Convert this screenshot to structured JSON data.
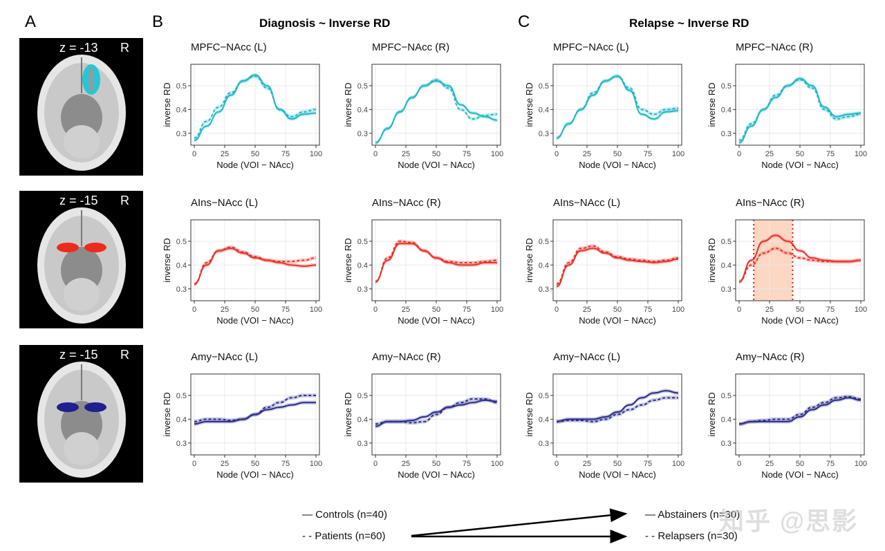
{
  "panel_letters": {
    "a": "A",
    "b": "B",
    "c": "C"
  },
  "section_titles": {
    "diagnosis": "Diagnosis ~ Inverse RD",
    "relapse": "Relapse ~ Inverse RD"
  },
  "brain_slices": [
    {
      "z_label": "z = -13",
      "side": "R",
      "region_color": "#22c8d8"
    },
    {
      "z_label": "z = -15",
      "side": "R",
      "region_color": "#ee2a1f"
    },
    {
      "z_label": "z = -15",
      "side": "R",
      "region_color": "#1f1f8f"
    }
  ],
  "legend": {
    "controls": "— Controls (n=40)",
    "patients": "- - Patients (n=60)",
    "abstainers": "— Abstainers (n=30)",
    "relapsers": "- - Relapsers (n=30)"
  },
  "watermark": "知乎 @思影",
  "colors": {
    "mpfc": "#1fb8c8",
    "ains": "#e8332a",
    "amy": "#2b2b8c",
    "highlight": "#f9c9b0"
  },
  "chart_data": [
    {
      "type": "line",
      "group": "Diagnosis",
      "title": "MPFC−NAcc (L)",
      "xlabel": "Node (VOI − NAcc)",
      "ylabel": "inverse RD",
      "xlim": [
        0,
        100
      ],
      "ylim": [
        0.25,
        0.59
      ],
      "xticks": [
        0,
        25,
        50,
        75,
        100
      ],
      "yticks": [
        0.3,
        0.4,
        0.5
      ],
      "grid": true,
      "color_key": "mpfc",
      "x": [
        0,
        10,
        20,
        30,
        40,
        50,
        60,
        70,
        80,
        90,
        100
      ],
      "series": [
        {
          "name": "Controls",
          "dash": false,
          "values": [
            0.27,
            0.33,
            0.39,
            0.46,
            0.52,
            0.545,
            0.5,
            0.4,
            0.36,
            0.38,
            0.385
          ]
        },
        {
          "name": "Patients",
          "dash": true,
          "values": [
            0.28,
            0.35,
            0.41,
            0.47,
            0.52,
            0.54,
            0.49,
            0.4,
            0.37,
            0.39,
            0.4
          ]
        }
      ]
    },
    {
      "type": "line",
      "group": "Diagnosis",
      "title": "MPFC−NAcc (R)",
      "xlabel": "Node (VOI − NAcc)",
      "ylabel": "inverse RD",
      "xlim": [
        0,
        100
      ],
      "ylim": [
        0.25,
        0.59
      ],
      "xticks": [
        0,
        25,
        50,
        75,
        100
      ],
      "yticks": [
        0.3,
        0.4,
        0.5
      ],
      "grid": true,
      "color_key": "mpfc",
      "x": [
        0,
        10,
        20,
        30,
        40,
        50,
        60,
        70,
        80,
        90,
        100
      ],
      "series": [
        {
          "name": "Controls",
          "dash": false,
          "values": [
            0.26,
            0.32,
            0.39,
            0.45,
            0.5,
            0.52,
            0.5,
            0.42,
            0.385,
            0.37,
            0.355
          ]
        },
        {
          "name": "Patients",
          "dash": true,
          "values": [
            0.26,
            0.32,
            0.39,
            0.45,
            0.5,
            0.525,
            0.49,
            0.4,
            0.36,
            0.375,
            0.38
          ]
        }
      ]
    },
    {
      "type": "line",
      "group": "Relapse",
      "title": "MPFC−NAcc (L)",
      "xlabel": "Node (VOI − NAcc)",
      "ylabel": "inverse RD",
      "xlim": [
        0,
        100
      ],
      "ylim": [
        0.25,
        0.59
      ],
      "xticks": [
        0,
        25,
        50,
        75,
        100
      ],
      "yticks": [
        0.3,
        0.4,
        0.5
      ],
      "grid": true,
      "color_key": "mpfc",
      "x": [
        0,
        10,
        20,
        30,
        40,
        50,
        60,
        70,
        80,
        90,
        100
      ],
      "series": [
        {
          "name": "Abstainers",
          "dash": false,
          "values": [
            0.28,
            0.34,
            0.4,
            0.46,
            0.52,
            0.54,
            0.48,
            0.38,
            0.36,
            0.39,
            0.395
          ]
        },
        {
          "name": "Relapsers",
          "dash": true,
          "values": [
            0.28,
            0.34,
            0.4,
            0.47,
            0.52,
            0.54,
            0.49,
            0.4,
            0.38,
            0.4,
            0.405
          ]
        }
      ]
    },
    {
      "type": "line",
      "group": "Relapse",
      "title": "MPFC−NAcc (R)",
      "xlabel": "Node (VOI − NAcc)",
      "ylabel": "inverse RD",
      "xlim": [
        0,
        100
      ],
      "ylim": [
        0.25,
        0.59
      ],
      "xticks": [
        0,
        25,
        50,
        75,
        100
      ],
      "yticks": [
        0.3,
        0.4,
        0.5
      ],
      "grid": true,
      "color_key": "mpfc",
      "x": [
        0,
        10,
        20,
        30,
        40,
        50,
        60,
        70,
        80,
        90,
        100
      ],
      "series": [
        {
          "name": "Abstainers",
          "dash": false,
          "values": [
            0.26,
            0.33,
            0.4,
            0.45,
            0.5,
            0.53,
            0.5,
            0.41,
            0.37,
            0.38,
            0.385
          ]
        },
        {
          "name": "Relapsers",
          "dash": true,
          "values": [
            0.27,
            0.34,
            0.4,
            0.46,
            0.5,
            0.525,
            0.49,
            0.4,
            0.36,
            0.37,
            0.38
          ]
        }
      ]
    },
    {
      "type": "line",
      "group": "Diagnosis",
      "title": "AIns−NAcc (L)",
      "xlabel": "Node (VOI − NAcc)",
      "ylabel": "inverse RD",
      "xlim": [
        0,
        100
      ],
      "ylim": [
        0.25,
        0.59
      ],
      "xticks": [
        0,
        25,
        50,
        75,
        100
      ],
      "yticks": [
        0.3,
        0.4,
        0.5
      ],
      "grid": true,
      "color_key": "ains",
      "x": [
        0,
        10,
        20,
        30,
        40,
        50,
        60,
        70,
        80,
        90,
        100
      ],
      "series": [
        {
          "name": "Controls",
          "dash": false,
          "values": [
            0.32,
            0.4,
            0.46,
            0.47,
            0.45,
            0.43,
            0.42,
            0.41,
            0.4,
            0.395,
            0.4
          ]
        },
        {
          "name": "Patients",
          "dash": true,
          "values": [
            0.32,
            0.41,
            0.46,
            0.475,
            0.455,
            0.435,
            0.42,
            0.415,
            0.415,
            0.42,
            0.43
          ]
        }
      ]
    },
    {
      "type": "line",
      "group": "Diagnosis",
      "title": "AIns−NAcc (R)",
      "xlabel": "Node (VOI − NAcc)",
      "ylabel": "inverse RD",
      "xlim": [
        0,
        100
      ],
      "ylim": [
        0.25,
        0.59
      ],
      "xticks": [
        0,
        25,
        50,
        75,
        100
      ],
      "yticks": [
        0.3,
        0.4,
        0.5
      ],
      "grid": true,
      "color_key": "ains",
      "x": [
        0,
        10,
        20,
        30,
        40,
        50,
        60,
        70,
        80,
        90,
        100
      ],
      "series": [
        {
          "name": "Controls",
          "dash": false,
          "values": [
            0.33,
            0.42,
            0.49,
            0.49,
            0.46,
            0.43,
            0.41,
            0.4,
            0.4,
            0.41,
            0.41
          ]
        },
        {
          "name": "Patients",
          "dash": true,
          "values": [
            0.33,
            0.43,
            0.5,
            0.495,
            0.46,
            0.43,
            0.415,
            0.41,
            0.41,
            0.415,
            0.42
          ]
        }
      ]
    },
    {
      "type": "line",
      "group": "Relapse",
      "title": "AIns−NAcc (L)",
      "xlabel": "Node (VOI − NAcc)",
      "ylabel": "inverse RD",
      "xlim": [
        0,
        100
      ],
      "ylim": [
        0.25,
        0.59
      ],
      "xticks": [
        0,
        25,
        50,
        75,
        100
      ],
      "yticks": [
        0.3,
        0.4,
        0.5
      ],
      "grid": true,
      "color_key": "ains",
      "x": [
        0,
        10,
        20,
        30,
        40,
        50,
        60,
        70,
        80,
        90,
        100
      ],
      "series": [
        {
          "name": "Abstainers",
          "dash": false,
          "values": [
            0.31,
            0.4,
            0.46,
            0.47,
            0.45,
            0.43,
            0.42,
            0.415,
            0.41,
            0.415,
            0.425
          ]
        },
        {
          "name": "Relapsers",
          "dash": true,
          "values": [
            0.32,
            0.41,
            0.47,
            0.48,
            0.455,
            0.435,
            0.425,
            0.42,
            0.415,
            0.42,
            0.43
          ]
        }
      ]
    },
    {
      "type": "line",
      "group": "Relapse",
      "title": "AIns−NAcc (R)",
      "xlabel": "Node (VOI − NAcc)",
      "ylabel": "inverse RD",
      "xlim": [
        0,
        100
      ],
      "ylim": [
        0.25,
        0.59
      ],
      "xticks": [
        0,
        25,
        50,
        75,
        100
      ],
      "yticks": [
        0.3,
        0.4,
        0.5
      ],
      "grid": true,
      "color_key": "ains",
      "highlight_range": [
        12,
        44
      ],
      "x": [
        0,
        10,
        20,
        30,
        40,
        50,
        60,
        70,
        80,
        90,
        100
      ],
      "series": [
        {
          "name": "Abstainers",
          "dash": false,
          "values": [
            0.33,
            0.42,
            0.5,
            0.525,
            0.5,
            0.46,
            0.43,
            0.42,
            0.415,
            0.415,
            0.42
          ]
        },
        {
          "name": "Relapsers",
          "dash": true,
          "values": [
            0.33,
            0.4,
            0.45,
            0.47,
            0.45,
            0.43,
            0.42,
            0.415,
            0.415,
            0.415,
            0.42
          ]
        }
      ]
    },
    {
      "type": "line",
      "group": "Diagnosis",
      "title": "Amy−NAcc (L)",
      "xlabel": "Node (VOI − NAcc)",
      "ylabel": "inverse RD",
      "xlim": [
        0,
        100
      ],
      "ylim": [
        0.25,
        0.59
      ],
      "xticks": [
        0,
        25,
        50,
        75,
        100
      ],
      "yticks": [
        0.3,
        0.4,
        0.5
      ],
      "grid": true,
      "color_key": "amy",
      "x": [
        0,
        10,
        20,
        30,
        40,
        50,
        60,
        70,
        80,
        90,
        100
      ],
      "series": [
        {
          "name": "Controls",
          "dash": false,
          "values": [
            0.38,
            0.39,
            0.39,
            0.39,
            0.4,
            0.42,
            0.44,
            0.45,
            0.46,
            0.47,
            0.47
          ]
        },
        {
          "name": "Patients",
          "dash": true,
          "values": [
            0.39,
            0.4,
            0.4,
            0.395,
            0.4,
            0.42,
            0.45,
            0.47,
            0.49,
            0.5,
            0.5
          ]
        }
      ]
    },
    {
      "type": "line",
      "group": "Diagnosis",
      "title": "Amy−NAcc (R)",
      "xlabel": "Node (VOI − NAcc)",
      "ylabel": "inverse RD",
      "xlim": [
        0,
        100
      ],
      "ylim": [
        0.25,
        0.59
      ],
      "xticks": [
        0,
        25,
        50,
        75,
        100
      ],
      "yticks": [
        0.3,
        0.4,
        0.5
      ],
      "grid": true,
      "color_key": "amy",
      "x": [
        0,
        10,
        20,
        30,
        40,
        50,
        60,
        70,
        80,
        90,
        100
      ],
      "series": [
        {
          "name": "Controls",
          "dash": false,
          "values": [
            0.37,
            0.39,
            0.39,
            0.395,
            0.41,
            0.43,
            0.45,
            0.46,
            0.47,
            0.48,
            0.475
          ]
        },
        {
          "name": "Patients",
          "dash": true,
          "values": [
            0.38,
            0.39,
            0.39,
            0.385,
            0.39,
            0.42,
            0.45,
            0.47,
            0.485,
            0.485,
            0.47
          ]
        }
      ]
    },
    {
      "type": "line",
      "group": "Relapse",
      "title": "Amy−NAcc (L)",
      "xlabel": "Node (VOI − NAcc)",
      "ylabel": "inverse RD",
      "xlim": [
        0,
        100
      ],
      "ylim": [
        0.25,
        0.59
      ],
      "xticks": [
        0,
        25,
        50,
        75,
        100
      ],
      "yticks": [
        0.3,
        0.4,
        0.5
      ],
      "grid": true,
      "color_key": "amy",
      "x": [
        0,
        10,
        20,
        30,
        40,
        50,
        60,
        70,
        80,
        90,
        100
      ],
      "series": [
        {
          "name": "Abstainers",
          "dash": false,
          "values": [
            0.39,
            0.4,
            0.4,
            0.4,
            0.41,
            0.43,
            0.46,
            0.49,
            0.51,
            0.52,
            0.51
          ]
        },
        {
          "name": "Relapsers",
          "dash": true,
          "values": [
            0.39,
            0.395,
            0.395,
            0.39,
            0.4,
            0.42,
            0.44,
            0.46,
            0.48,
            0.49,
            0.49
          ]
        }
      ]
    },
    {
      "type": "line",
      "group": "Relapse",
      "title": "Amy−NAcc (R)",
      "xlabel": "Node (VOI − NAcc)",
      "ylabel": "inverse RD",
      "xlim": [
        0,
        100
      ],
      "ylim": [
        0.25,
        0.59
      ],
      "xticks": [
        0,
        25,
        50,
        75,
        100
      ],
      "yticks": [
        0.3,
        0.4,
        0.5
      ],
      "grid": true,
      "color_key": "amy",
      "x": [
        0,
        10,
        20,
        30,
        40,
        50,
        60,
        70,
        80,
        90,
        100
      ],
      "series": [
        {
          "name": "Abstainers",
          "dash": false,
          "values": [
            0.38,
            0.39,
            0.39,
            0.39,
            0.39,
            0.41,
            0.44,
            0.46,
            0.48,
            0.49,
            0.48
          ]
        },
        {
          "name": "Relapsers",
          "dash": true,
          "values": [
            0.38,
            0.39,
            0.395,
            0.4,
            0.4,
            0.42,
            0.45,
            0.47,
            0.49,
            0.495,
            0.485
          ]
        }
      ]
    }
  ]
}
